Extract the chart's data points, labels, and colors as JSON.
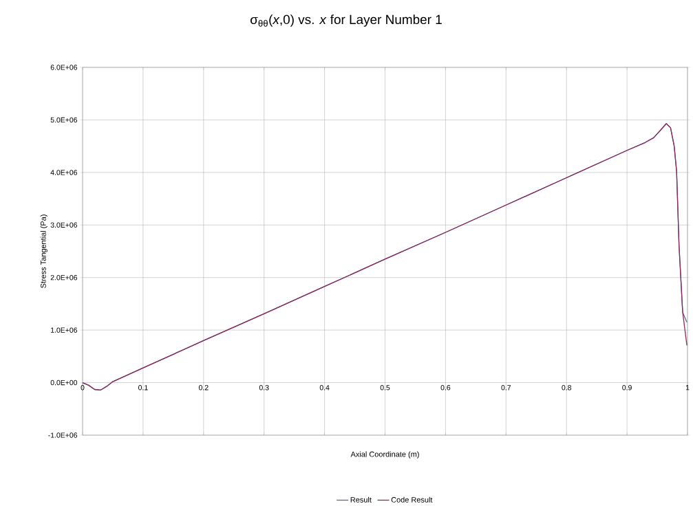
{
  "chart_data": {
    "type": "line",
    "title": "σ$_{θθ}$(*x*,0) vs. *x* for Layer Number 1",
    "xlabel": "Axial Coordinate (m)",
    "ylabel": "Stress Tangential (Pa)",
    "x": [
      0,
      0.01,
      0.02,
      0.03,
      0.04,
      0.05,
      0.1,
      0.2,
      0.3,
      0.4,
      0.5,
      0.6,
      0.7,
      0.8,
      0.9,
      0.93,
      0.944,
      0.955,
      0.965,
      0.972,
      0.978,
      0.982,
      0.986,
      0.992,
      0.999
    ],
    "series": [
      {
        "name": "Result",
        "color": "#62629e",
        "values": [
          0,
          -50000,
          -130000,
          -140000,
          -70000,
          20000,
          280000,
          800000,
          1310000,
          1830000,
          2350000,
          2860000,
          3380000,
          3900000,
          4420000,
          4570000,
          4660000,
          4800000,
          4930000,
          4850000,
          4500000,
          4020000,
          2610000,
          1340000,
          1150000
        ]
      },
      {
        "name": "Code Result",
        "color": "#8b2a5a",
        "values": [
          0,
          -50000,
          -130000,
          -140000,
          -70000,
          20000,
          280000,
          800000,
          1310000,
          1830000,
          2350000,
          2860000,
          3380000,
          3900000,
          4420000,
          4570000,
          4660000,
          4800000,
          4930000,
          4850000,
          4500000,
          4020000,
          2610000,
          1340000,
          710000
        ]
      }
    ],
    "xlim": [
      0,
      1
    ],
    "ylim": [
      -1000000,
      6000000
    ],
    "xticks": [
      0,
      0.1,
      0.2,
      0.3,
      0.4,
      0.5,
      0.6,
      0.7,
      0.8,
      0.9,
      1
    ],
    "yticks": [
      {
        "value": -1000000,
        "label": "-1.0E+06"
      },
      {
        "value": 0,
        "label": "0.0E+00"
      },
      {
        "value": 1000000,
        "label": "1.0E+06"
      },
      {
        "value": 2000000,
        "label": "2.0E+06"
      },
      {
        "value": 3000000,
        "label": "3.0E+06"
      },
      {
        "value": 4000000,
        "label": "4.0E+06"
      },
      {
        "value": 5000000,
        "label": "5.0E+06"
      },
      {
        "value": 6000000,
        "label": "6.0E+06"
      }
    ],
    "grid": true,
    "legend": "bottom",
    "marker": "none",
    "line_style": "solid"
  }
}
